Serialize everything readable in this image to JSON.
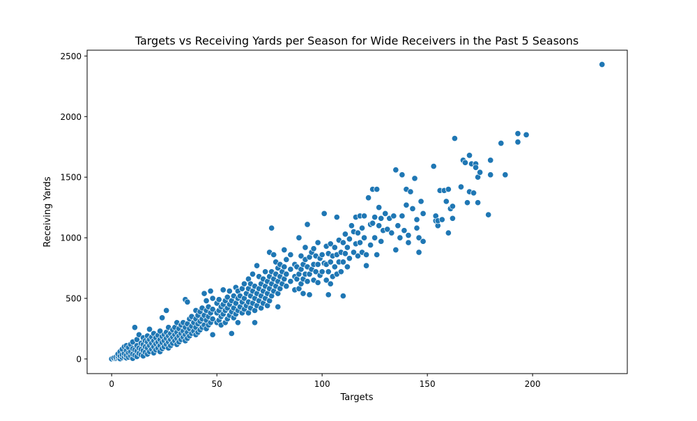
{
  "chart_data": {
    "type": "scatter",
    "title": "Targets vs Receiving Yards per Season for Wide Receivers in the Past 5 Seasons",
    "xlabel": "Targets",
    "ylabel": "Receiving Yards",
    "xlim": [
      -11.65,
      245
    ],
    "ylim": [
      -121,
      2548
    ],
    "xticks": [
      0,
      50,
      100,
      150,
      200
    ],
    "yticks": [
      0,
      500,
      1000,
      1500,
      2000,
      2500
    ],
    "grid": false,
    "legend": "none",
    "marker_color": "#1f77b4",
    "marker_edge_color": "#ffffff",
    "points": [
      [
        0,
        0
      ],
      [
        1,
        3
      ],
      [
        1,
        8
      ],
      [
        2,
        5
      ],
      [
        2,
        15
      ],
      [
        3,
        10
      ],
      [
        3,
        22
      ],
      [
        3,
        40
      ],
      [
        4,
        2
      ],
      [
        4,
        25
      ],
      [
        4,
        60
      ],
      [
        5,
        12
      ],
      [
        5,
        35
      ],
      [
        5,
        80
      ],
      [
        6,
        18
      ],
      [
        6,
        45
      ],
      [
        6,
        100
      ],
      [
        7,
        8
      ],
      [
        7,
        30
      ],
      [
        7,
        70
      ],
      [
        7,
        110
      ],
      [
        8,
        15
      ],
      [
        8,
        50
      ],
      [
        8,
        95
      ],
      [
        9,
        25
      ],
      [
        9,
        60
      ],
      [
        9,
        120
      ],
      [
        10,
        5
      ],
      [
        10,
        40
      ],
      [
        10,
        85
      ],
      [
        10,
        140
      ],
      [
        11,
        30
      ],
      [
        11,
        75
      ],
      [
        11,
        260
      ],
      [
        12,
        20
      ],
      [
        12,
        65
      ],
      [
        12,
        110
      ],
      [
        12,
        160
      ],
      [
        13,
        45
      ],
      [
        13,
        90
      ],
      [
        13,
        200
      ],
      [
        14,
        35
      ],
      [
        14,
        80
      ],
      [
        14,
        130
      ],
      [
        15,
        25
      ],
      [
        15,
        70
      ],
      [
        15,
        120
      ],
      [
        15,
        175
      ],
      [
        16,
        55
      ],
      [
        16,
        100
      ],
      [
        16,
        150
      ],
      [
        17,
        40
      ],
      [
        17,
        90
      ],
      [
        17,
        140
      ],
      [
        17,
        190
      ],
      [
        18,
        60
      ],
      [
        18,
        110
      ],
      [
        18,
        160
      ],
      [
        18,
        245
      ],
      [
        19,
        80
      ],
      [
        19,
        130
      ],
      [
        19,
        180
      ],
      [
        20,
        50
      ],
      [
        20,
        100
      ],
      [
        20,
        150
      ],
      [
        20,
        210
      ],
      [
        21,
        75
      ],
      [
        21,
        125
      ],
      [
        21,
        175
      ],
      [
        22,
        90
      ],
      [
        22,
        140
      ],
      [
        22,
        195
      ],
      [
        23,
        60
      ],
      [
        23,
        110
      ],
      [
        23,
        160
      ],
      [
        23,
        230
      ],
      [
        24,
        85
      ],
      [
        24,
        135
      ],
      [
        24,
        185
      ],
      [
        24,
        340
      ],
      [
        25,
        100
      ],
      [
        25,
        150
      ],
      [
        25,
        200
      ],
      [
        26,
        120
      ],
      [
        26,
        170
      ],
      [
        26,
        220
      ],
      [
        26,
        400
      ],
      [
        27,
        90
      ],
      [
        27,
        140
      ],
      [
        27,
        190
      ],
      [
        27,
        260
      ],
      [
        28,
        110
      ],
      [
        28,
        160
      ],
      [
        28,
        210
      ],
      [
        29,
        130
      ],
      [
        29,
        180
      ],
      [
        29,
        240
      ],
      [
        30,
        150
      ],
      [
        30,
        200
      ],
      [
        30,
        260
      ],
      [
        31,
        120
      ],
      [
        31,
        170
      ],
      [
        31,
        220
      ],
      [
        31,
        300
      ],
      [
        32,
        140
      ],
      [
        32,
        190
      ],
      [
        32,
        250
      ],
      [
        33,
        160
      ],
      [
        33,
        210
      ],
      [
        33,
        280
      ],
      [
        34,
        180
      ],
      [
        34,
        230
      ],
      [
        34,
        300
      ],
      [
        35,
        150
      ],
      [
        35,
        200
      ],
      [
        35,
        260
      ],
      [
        35,
        490
      ],
      [
        36,
        170
      ],
      [
        36,
        220
      ],
      [
        36,
        290
      ],
      [
        36,
        470
      ],
      [
        37,
        190
      ],
      [
        37,
        250
      ],
      [
        37,
        330
      ],
      [
        38,
        210
      ],
      [
        38,
        270
      ],
      [
        38,
        350
      ],
      [
        39,
        230
      ],
      [
        39,
        300
      ],
      [
        40,
        200
      ],
      [
        40,
        260
      ],
      [
        40,
        330
      ],
      [
        40,
        400
      ],
      [
        41,
        220
      ],
      [
        41,
        290
      ],
      [
        41,
        360
      ],
      [
        42,
        240
      ],
      [
        42,
        310
      ],
      [
        42,
        390
      ],
      [
        43,
        260
      ],
      [
        43,
        330
      ],
      [
        43,
        420
      ],
      [
        44,
        280
      ],
      [
        44,
        360
      ],
      [
        44,
        540
      ],
      [
        45,
        250
      ],
      [
        45,
        320
      ],
      [
        45,
        400
      ],
      [
        45,
        480
      ],
      [
        46,
        280
      ],
      [
        46,
        350
      ],
      [
        46,
        430
      ],
      [
        47,
        300
      ],
      [
        47,
        380
      ],
      [
        47,
        560
      ],
      [
        48,
        200
      ],
      [
        48,
        330
      ],
      [
        48,
        410
      ],
      [
        48,
        500
      ],
      [
        50,
        300
      ],
      [
        50,
        380
      ],
      [
        50,
        460
      ],
      [
        51,
        320
      ],
      [
        51,
        400
      ],
      [
        51,
        490
      ],
      [
        52,
        280
      ],
      [
        52,
        350
      ],
      [
        52,
        430
      ],
      [
        53,
        370
      ],
      [
        53,
        450
      ],
      [
        53,
        570
      ],
      [
        54,
        300
      ],
      [
        54,
        400
      ],
      [
        54,
        480
      ],
      [
        55,
        330
      ],
      [
        55,
        420
      ],
      [
        55,
        510
      ],
      [
        56,
        360
      ],
      [
        56,
        450
      ],
      [
        56,
        560
      ],
      [
        57,
        210
      ],
      [
        57,
        390
      ],
      [
        57,
        480
      ],
      [
        58,
        340
      ],
      [
        58,
        420
      ],
      [
        58,
        520
      ],
      [
        59,
        370
      ],
      [
        59,
        460
      ],
      [
        59,
        590
      ],
      [
        60,
        300
      ],
      [
        60,
        400
      ],
      [
        60,
        500
      ],
      [
        60,
        560
      ],
      [
        61,
        430
      ],
      [
        61,
        520
      ],
      [
        62,
        380
      ],
      [
        62,
        470
      ],
      [
        62,
        580
      ],
      [
        63,
        410
      ],
      [
        63,
        500
      ],
      [
        63,
        620
      ],
      [
        64,
        440
      ],
      [
        64,
        540
      ],
      [
        65,
        380
      ],
      [
        65,
        470
      ],
      [
        65,
        580
      ],
      [
        65,
        660
      ],
      [
        66,
        420
      ],
      [
        66,
        520
      ],
      [
        66,
        620
      ],
      [
        67,
        460
      ],
      [
        67,
        560
      ],
      [
        67,
        700
      ],
      [
        68,
        300
      ],
      [
        68,
        400
      ],
      [
        68,
        500
      ],
      [
        68,
        600
      ],
      [
        69,
        440
      ],
      [
        69,
        540
      ],
      [
        69,
        770
      ],
      [
        70,
        480
      ],
      [
        70,
        580
      ],
      [
        70,
        680
      ],
      [
        71,
        420
      ],
      [
        71,
        520
      ],
      [
        71,
        620
      ],
      [
        72,
        460
      ],
      [
        72,
        560
      ],
      [
        72,
        660
      ],
      [
        73,
        500
      ],
      [
        73,
        600
      ],
      [
        73,
        720
      ],
      [
        74,
        440
      ],
      [
        74,
        540
      ],
      [
        74,
        640
      ],
      [
        75,
        480
      ],
      [
        75,
        580
      ],
      [
        75,
        680
      ],
      [
        75,
        880
      ],
      [
        76,
        520
      ],
      [
        76,
        620
      ],
      [
        76,
        720
      ],
      [
        76,
        1080
      ],
      [
        77,
        560
      ],
      [
        77,
        660
      ],
      [
        77,
        860
      ],
      [
        78,
        600
      ],
      [
        78,
        700
      ],
      [
        78,
        800
      ],
      [
        79,
        430
      ],
      [
        79,
        540
      ],
      [
        79,
        640
      ],
      [
        79,
        750
      ],
      [
        80,
        580
      ],
      [
        80,
        680
      ],
      [
        80,
        780
      ],
      [
        81,
        620
      ],
      [
        81,
        720
      ],
      [
        82,
        660
      ],
      [
        82,
        760
      ],
      [
        82,
        900
      ],
      [
        83,
        600
      ],
      [
        83,
        700
      ],
      [
        83,
        820
      ],
      [
        85,
        640
      ],
      [
        85,
        740
      ],
      [
        85,
        860
      ],
      [
        87,
        570
      ],
      [
        87,
        680
      ],
      [
        87,
        780
      ],
      [
        88,
        660
      ],
      [
        88,
        760
      ],
      [
        89,
        580
      ],
      [
        89,
        700
      ],
      [
        89,
        1000
      ],
      [
        90,
        620
      ],
      [
        90,
        740
      ],
      [
        90,
        850
      ],
      [
        91,
        540
      ],
      [
        91,
        660
      ],
      [
        91,
        780
      ],
      [
        92,
        700
      ],
      [
        92,
        820
      ],
      [
        92,
        920
      ],
      [
        93,
        640
      ],
      [
        93,
        760
      ],
      [
        93,
        1110
      ],
      [
        94,
        530
      ],
      [
        94,
        700
      ],
      [
        94,
        840
      ],
      [
        95,
        740
      ],
      [
        95,
        880
      ],
      [
        96,
        650
      ],
      [
        96,
        780
      ],
      [
        96,
        910
      ],
      [
        97,
        720
      ],
      [
        97,
        850
      ],
      [
        98,
        630
      ],
      [
        98,
        780
      ],
      [
        98,
        960
      ],
      [
        99,
        690
      ],
      [
        99,
        830
      ],
      [
        100,
        720
      ],
      [
        100,
        860
      ],
      [
        101,
        790
      ],
      [
        101,
        1200
      ],
      [
        102,
        650
      ],
      [
        102,
        780
      ],
      [
        102,
        930
      ],
      [
        103,
        530
      ],
      [
        103,
        720
      ],
      [
        103,
        870
      ],
      [
        104,
        620
      ],
      [
        104,
        800
      ],
      [
        104,
        950
      ],
      [
        105,
        680
      ],
      [
        105,
        850
      ],
      [
        106,
        760
      ],
      [
        106,
        920
      ],
      [
        107,
        700
      ],
      [
        107,
        860
      ],
      [
        107,
        1170
      ],
      [
        108,
        800
      ],
      [
        108,
        980
      ],
      [
        109,
        720
      ],
      [
        109,
        880
      ],
      [
        110,
        520
      ],
      [
        110,
        800
      ],
      [
        110,
        960
      ],
      [
        111,
        870
      ],
      [
        111,
        1030
      ],
      [
        112,
        760
      ],
      [
        112,
        920
      ],
      [
        113,
        830
      ],
      [
        113,
        990
      ],
      [
        114,
        1100
      ],
      [
        115,
        880
      ],
      [
        115,
        1050
      ],
      [
        116,
        950
      ],
      [
        116,
        1170
      ],
      [
        117,
        850
      ],
      [
        117,
        1040
      ],
      [
        118,
        960
      ],
      [
        118,
        1180
      ],
      [
        119,
        880
      ],
      [
        119,
        1080
      ],
      [
        120,
        1000
      ],
      [
        120,
        1180
      ],
      [
        121,
        770
      ],
      [
        121,
        860
      ],
      [
        122,
        1330
      ],
      [
        123,
        940
      ],
      [
        123,
        1110
      ],
      [
        124,
        1120
      ],
      [
        124,
        1400
      ],
      [
        125,
        1000
      ],
      [
        125,
        1170
      ],
      [
        126,
        860
      ],
      [
        126,
        1400
      ],
      [
        127,
        1100
      ],
      [
        127,
        1250
      ],
      [
        128,
        970
      ],
      [
        128,
        1160
      ],
      [
        129,
        1060
      ],
      [
        130,
        1200
      ],
      [
        131,
        1070
      ],
      [
        132,
        1160
      ],
      [
        133,
        1040
      ],
      [
        134,
        1180
      ],
      [
        135,
        900
      ],
      [
        135,
        1560
      ],
      [
        136,
        1100
      ],
      [
        137,
        1000
      ],
      [
        138,
        1520
      ],
      [
        138,
        1180
      ],
      [
        139,
        1060
      ],
      [
        140,
        1270
      ],
      [
        140,
        1400
      ],
      [
        141,
        1020
      ],
      [
        141,
        960
      ],
      [
        142,
        1380
      ],
      [
        143,
        1240
      ],
      [
        144,
        1490
      ],
      [
        145,
        1080
      ],
      [
        145,
        1150
      ],
      [
        146,
        880
      ],
      [
        146,
        1000
      ],
      [
        147,
        1300
      ],
      [
        148,
        970
      ],
      [
        148,
        1200
      ],
      [
        153,
        1590
      ],
      [
        154,
        1140
      ],
      [
        154,
        1180
      ],
      [
        155,
        1100
      ],
      [
        155,
        1140
      ],
      [
        156,
        1390
      ],
      [
        157,
        1150
      ],
      [
        158,
        1390
      ],
      [
        159,
        1300
      ],
      [
        160,
        1040
      ],
      [
        160,
        1400
      ],
      [
        161,
        1240
      ],
      [
        162,
        1260
      ],
      [
        162,
        1160
      ],
      [
        163,
        1820
      ],
      [
        166,
        1420
      ],
      [
        167,
        1640
      ],
      [
        168,
        1620
      ],
      [
        169,
        1290
      ],
      [
        170,
        1380
      ],
      [
        170,
        1680
      ],
      [
        171,
        1610
      ],
      [
        172,
        1370
      ],
      [
        173,
        1610
      ],
      [
        173,
        1580
      ],
      [
        174,
        1500
      ],
      [
        174,
        1290
      ],
      [
        175,
        1540
      ],
      [
        179,
        1190
      ],
      [
        180,
        1640
      ],
      [
        180,
        1520
      ],
      [
        185,
        1780
      ],
      [
        187,
        1520
      ],
      [
        193,
        1860
      ],
      [
        193,
        1790
      ],
      [
        197,
        1850
      ],
      [
        233,
        2430
      ]
    ]
  }
}
